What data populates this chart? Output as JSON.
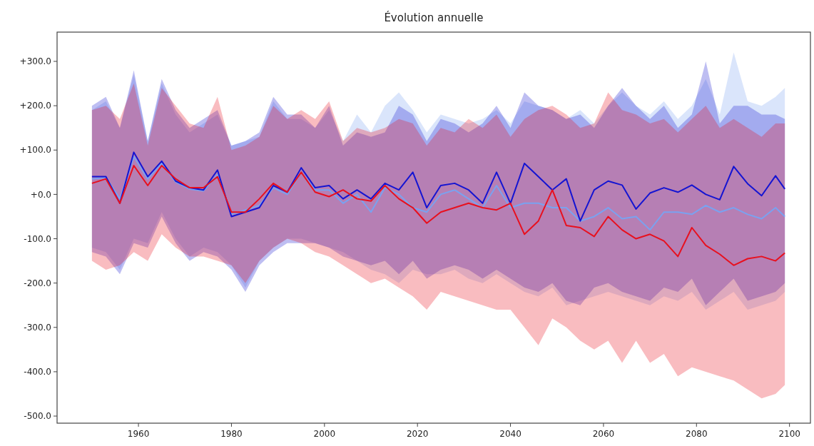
{
  "chart_data": {
    "type": "line",
    "title": "Évolution annuelle",
    "x": [
      1950,
      1953,
      1956,
      1959,
      1962,
      1965,
      1968,
      1971,
      1974,
      1977,
      1980,
      1983,
      1986,
      1989,
      1992,
      1995,
      1998,
      2001,
      2004,
      2007,
      2010,
      2013,
      2016,
      2019,
      2022,
      2025,
      2028,
      2031,
      2034,
      2037,
      2040,
      2043,
      2046,
      2049,
      2052,
      2055,
      2058,
      2061,
      2064,
      2067,
      2070,
      2073,
      2076,
      2079,
      2082,
      2085,
      2088,
      2091,
      2094,
      2097,
      2099
    ],
    "xlim": [
      1942.5,
      2104.5
    ],
    "xticks": [
      1960,
      1980,
      2000,
      2020,
      2040,
      2060,
      2080,
      2100
    ],
    "ylim": [
      -516,
      366
    ],
    "yticks": [
      {
        "value": 300,
        "label": "+300.0"
      },
      {
        "value": 200,
        "label": "+200.0"
      },
      {
        "value": 100,
        "label": "+100.0"
      },
      {
        "value": 0,
        "label": "+0.0"
      },
      {
        "value": -100,
        "label": "-100.0"
      },
      {
        "value": -200,
        "label": "-200.0"
      },
      {
        "value": -300,
        "label": "-300.0"
      },
      {
        "value": -400,
        "label": "-400.0"
      },
      {
        "value": -500,
        "label": "-500.0"
      }
    ],
    "grid": false,
    "series": [
      {
        "color": "#7aa2f0",
        "values": [
          35,
          38,
          -10,
          85,
          35,
          70,
          28,
          12,
          8,
          45,
          -45,
          -35,
          -25,
          15,
          0,
          50,
          10,
          10,
          -20,
          0,
          -40,
          15,
          0,
          -30,
          -40,
          0,
          10,
          -10,
          -30,
          20,
          -30,
          -20,
          -20,
          -30,
          -30,
          -60,
          -50,
          -30,
          -55,
          -50,
          -80,
          -40,
          -40,
          -45,
          -25,
          -40,
          -30,
          -45,
          -55,
          -30,
          -50
        ],
        "upper": [
          190,
          210,
          150,
          270,
          120,
          250,
          180,
          140,
          160,
          180,
          110,
          120,
          130,
          210,
          170,
          170,
          150,
          190,
          120,
          180,
          140,
          200,
          230,
          190,
          140,
          180,
          170,
          160,
          170,
          190,
          160,
          210,
          200,
          190,
          170,
          190,
          160,
          200,
          230,
          200,
          180,
          210,
          170,
          200,
          260,
          180,
          320,
          210,
          200,
          220,
          240
        ],
        "lower": [
          -120,
          -130,
          -170,
          -100,
          -110,
          -40,
          -100,
          -140,
          -120,
          -130,
          -160,
          -210,
          -150,
          -120,
          -100,
          -100,
          -110,
          -120,
          -130,
          -150,
          -170,
          -180,
          -200,
          -170,
          -180,
          -180,
          -170,
          -190,
          -200,
          -180,
          -200,
          -220,
          -230,
          -210,
          -250,
          -240,
          -230,
          -220,
          -230,
          -240,
          -250,
          -230,
          -240,
          -220,
          -260,
          -240,
          -220,
          -260,
          -250,
          -240,
          -220
        ]
      },
      {
        "color": "#1414d2",
        "values": [
          40,
          40,
          -20,
          95,
          40,
          75,
          30,
          15,
          10,
          55,
          -50,
          -40,
          -30,
          20,
          5,
          60,
          15,
          20,
          -10,
          10,
          -10,
          25,
          10,
          50,
          -30,
          20,
          25,
          10,
          -20,
          50,
          -20,
          70,
          40,
          10,
          35,
          -60,
          10,
          30,
          21,
          -33,
          3,
          15,
          5,
          21,
          0,
          -12,
          63,
          24,
          -3,
          42,
          12
        ],
        "upper": [
          200,
          220,
          150,
          280,
          120,
          260,
          190,
          150,
          170,
          190,
          110,
          120,
          140,
          220,
          180,
          180,
          150,
          200,
          110,
          140,
          130,
          140,
          200,
          180,
          120,
          170,
          160,
          140,
          160,
          200,
          150,
          230,
          200,
          190,
          170,
          180,
          150,
          200,
          240,
          200,
          170,
          200,
          150,
          180,
          300,
          160,
          200,
          200,
          180,
          180,
          170
        ],
        "lower": [
          -130,
          -140,
          -180,
          -110,
          -120,
          -50,
          -110,
          -150,
          -130,
          -140,
          -170,
          -220,
          -160,
          -130,
          -110,
          -110,
          -110,
          -120,
          -140,
          -150,
          -160,
          -150,
          -180,
          -150,
          -190,
          -170,
          -160,
          -170,
          -190,
          -170,
          -190,
          -210,
          -220,
          -200,
          -240,
          -250,
          -210,
          -200,
          -220,
          -230,
          -240,
          -210,
          -220,
          -190,
          -250,
          -220,
          -190,
          -240,
          -230,
          -220,
          -200
        ]
      },
      {
        "color": "#e8101e",
        "values": [
          25,
          35,
          -20,
          65,
          20,
          65,
          35,
          15,
          15,
          40,
          -40,
          -40,
          -10,
          25,
          5,
          50,
          5,
          -5,
          10,
          -10,
          -15,
          20,
          -10,
          -30,
          -65,
          -40,
          -30,
          -20,
          -30,
          -35,
          -20,
          -90,
          -60,
          10,
          -70,
          -75,
          -95,
          -50,
          -80,
          -100,
          -90,
          -105,
          -140,
          -75,
          -115,
          -135,
          -160,
          -145,
          -140,
          -150,
          -132
        ],
        "upper": [
          190,
          200,
          170,
          250,
          110,
          240,
          200,
          160,
          150,
          220,
          100,
          110,
          130,
          200,
          170,
          190,
          170,
          210,
          120,
          150,
          140,
          150,
          170,
          160,
          110,
          150,
          140,
          170,
          150,
          180,
          130,
          170,
          190,
          200,
          180,
          150,
          160,
          230,
          190,
          180,
          160,
          170,
          140,
          170,
          200,
          150,
          170,
          150,
          130,
          160,
          160
        ],
        "lower": [
          -150,
          -170,
          -160,
          -130,
          -150,
          -90,
          -120,
          -140,
          -140,
          -150,
          -160,
          -200,
          -150,
          -120,
          -100,
          -110,
          -130,
          -140,
          -160,
          -180,
          -200,
          -190,
          -210,
          -230,
          -260,
          -220,
          -230,
          -240,
          -250,
          -260,
          -260,
          -300,
          -340,
          -280,
          -300,
          -330,
          -350,
          -330,
          -380,
          -330,
          -380,
          -360,
          -410,
          -390,
          -400,
          -410,
          -420,
          -440,
          -460,
          -450,
          -430
        ]
      }
    ]
  }
}
